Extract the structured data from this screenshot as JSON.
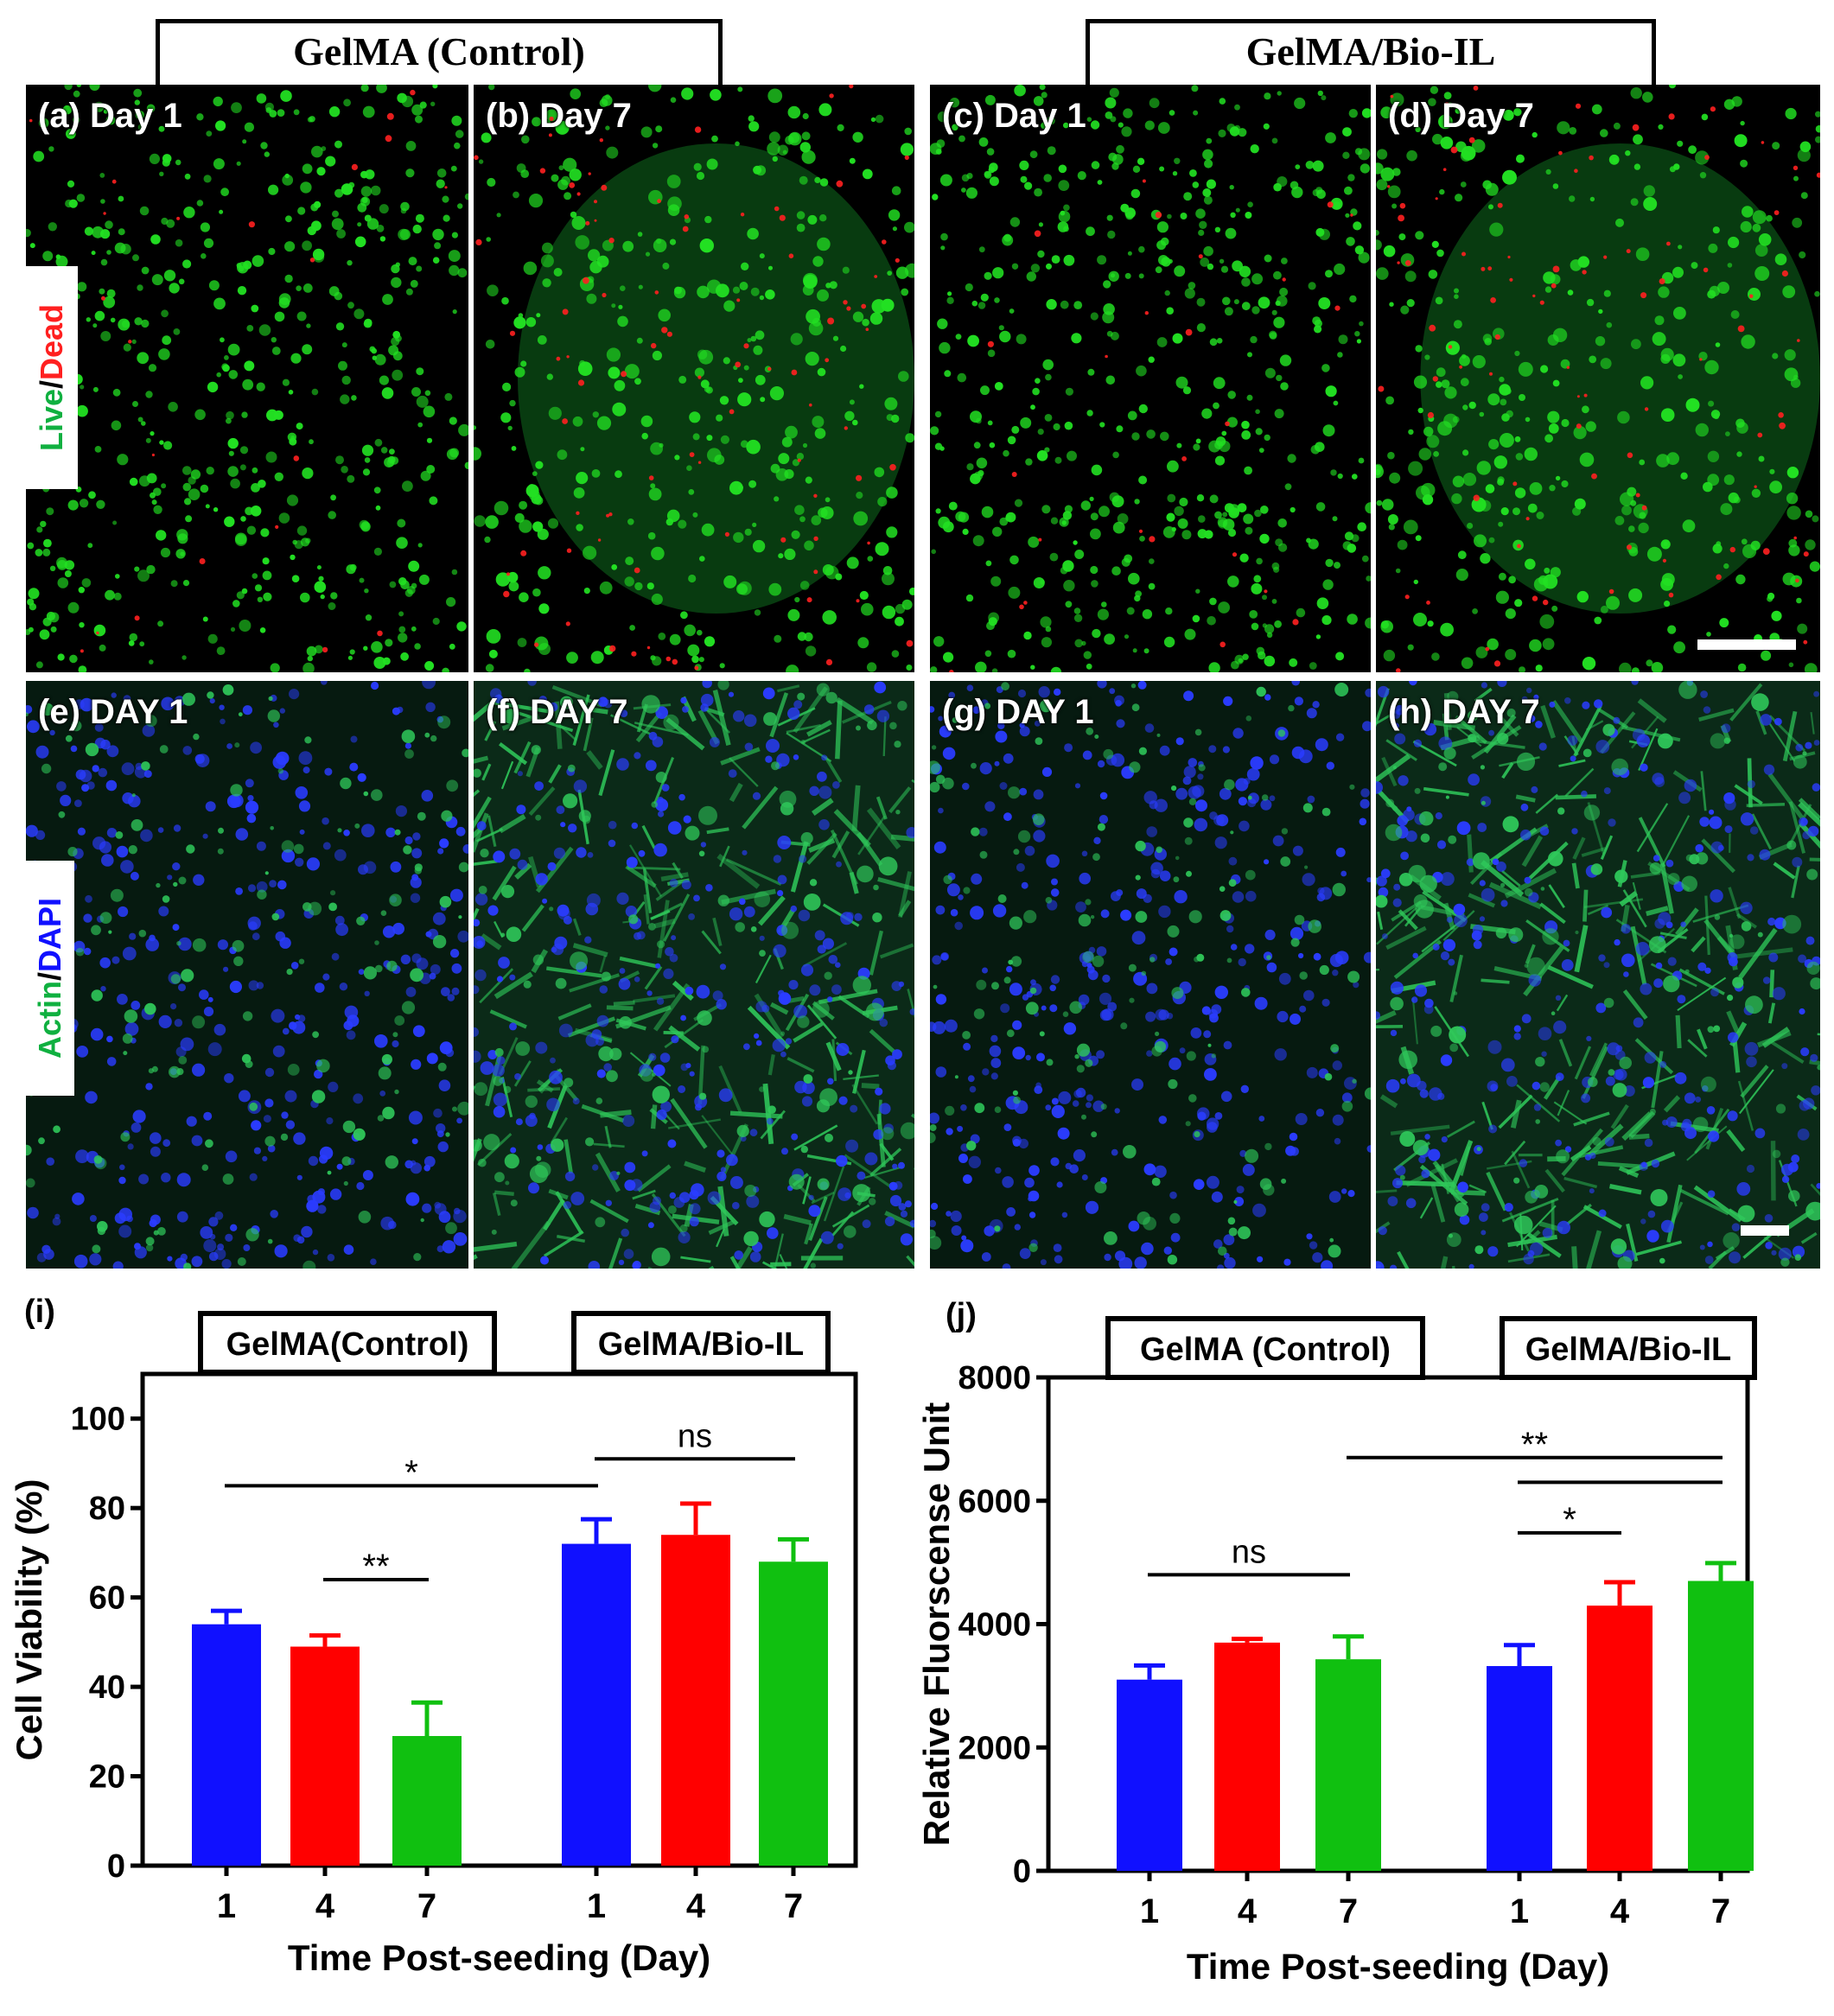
{
  "group_headers": {
    "control": "GelMA (Control)",
    "bio_il": "GelMA/Bio-IL"
  },
  "row_labels": {
    "live": "Live",
    "slash": "/",
    "dead": "Dead",
    "actin": "Actin",
    "dapi": "DAPI"
  },
  "panels": [
    {
      "label": "(a) Day 1",
      "stain": "live-dead"
    },
    {
      "label": "(b) Day 7",
      "stain": "live-dead"
    },
    {
      "label": "(c) Day 1",
      "stain": "live-dead"
    },
    {
      "label": "(d) Day 7",
      "stain": "live-dead"
    },
    {
      "label": "(e) DAY 1",
      "stain": "actin-dapi"
    },
    {
      "label": "(f) DAY 7",
      "stain": "actin-dapi"
    },
    {
      "label": "(g) DAY 1",
      "stain": "actin-dapi"
    },
    {
      "label": "(h) DAY 7",
      "stain": "actin-dapi"
    }
  ],
  "colors": {
    "blue": "#1010ff",
    "red": "#ff0000",
    "green": "#10c010",
    "live_green": "#22e022",
    "dead_red": "#ff2020",
    "dapi_blue": "#2a3cff",
    "actin_green": "#2fc85a"
  },
  "chart_data": [
    {
      "type": "bar",
      "panel_label": "(i)",
      "group_labels": [
        "GelMA(Control)",
        "GelMA/Bio-IL"
      ],
      "categories": [
        "1",
        "4",
        "7",
        "1",
        "4",
        "7"
      ],
      "values": [
        54,
        49,
        29,
        72,
        74,
        68
      ],
      "errors": [
        3,
        2.5,
        7.5,
        5.5,
        7,
        5
      ],
      "bar_colors": [
        "#1010ff",
        "#ff0000",
        "#10c010",
        "#1010ff",
        "#ff0000",
        "#10c010"
      ],
      "xlabel": "Time Post-seeding (Day)",
      "ylabel": "Cell Viability (%)",
      "ylim": [
        0,
        110
      ],
      "yticks": [
        0,
        20,
        40,
        60,
        80,
        100
      ],
      "annotations": [
        {
          "from": 0,
          "to": 3,
          "y": 85,
          "text": "*"
        },
        {
          "from": 1,
          "to": 2,
          "y": 64,
          "text": "**"
        },
        {
          "from": 3,
          "to": 5,
          "y": 91,
          "text": "ns"
        }
      ]
    },
    {
      "type": "bar",
      "panel_label": "(j)",
      "group_labels": [
        "GelMA (Control)",
        "GelMA/Bio-IL"
      ],
      "categories": [
        "1",
        "4",
        "7",
        "1",
        "4",
        "7"
      ],
      "values": [
        3100,
        3700,
        3430,
        3320,
        4300,
        4700
      ],
      "errors": [
        230,
        60,
        370,
        340,
        380,
        290
      ],
      "bar_colors": [
        "#1010ff",
        "#ff0000",
        "#10c010",
        "#1010ff",
        "#ff0000",
        "#10c010"
      ],
      "xlabel": "Time Post-seeding (Day)",
      "ylabel": "Relative Fluorscense Unit",
      "ylim": [
        0,
        8000
      ],
      "yticks": [
        0,
        2000,
        4000,
        6000,
        8000
      ],
      "annotations": [
        {
          "from": 0,
          "to": 2,
          "y": 4800,
          "text": "ns"
        },
        {
          "from": 3,
          "to": 4,
          "y": 5480,
          "text": "*"
        },
        {
          "from": 3,
          "to": 5,
          "y": 6300,
          "text": ""
        },
        {
          "from": 2,
          "to": 5,
          "y": 6700,
          "text": "**"
        }
      ]
    }
  ]
}
